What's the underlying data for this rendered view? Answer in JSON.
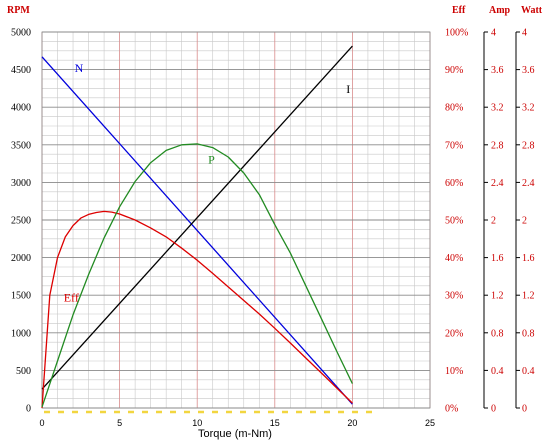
{
  "chart_data": {
    "type": "line",
    "title": "",
    "xlabel": "Torque (m-Nm)",
    "xlim": [
      0,
      25
    ],
    "x_ticks": [
      "0",
      "5",
      "10",
      "15",
      "20",
      "25"
    ],
    "grid": true,
    "y_axes": {
      "rpm": {
        "title": "RPM",
        "range": [
          0,
          5000
        ],
        "ticks": [
          "0",
          "500",
          "1000",
          "1500",
          "2000",
          "2500",
          "3000",
          "3500",
          "4000",
          "4500",
          "5000"
        ],
        "color": "#cc0000"
      },
      "eff": {
        "title": "Eff",
        "range": [
          0,
          100
        ],
        "ticks": [
          "0%",
          "10%",
          "20%",
          "30%",
          "40%",
          "50%",
          "60%",
          "70%",
          "80%",
          "90%",
          "100%"
        ],
        "color": "#cc0000"
      },
      "amp": {
        "title": "Amp",
        "range": [
          0,
          4
        ],
        "ticks": [
          "0",
          "0.4",
          "0.8",
          "1.2",
          "1.6",
          "2",
          "2.4",
          "2.8",
          "3.2",
          "3.6",
          "4"
        ],
        "color": "#cc0000"
      },
      "watt": {
        "title": "Watt",
        "range": [
          0,
          4
        ],
        "ticks": [
          "0",
          "0.4",
          "0.8",
          "1.2",
          "1.6",
          "2",
          "2.4",
          "2.8",
          "3.2",
          "3.6",
          "4"
        ],
        "color": "#cc0000"
      }
    },
    "series": [
      {
        "name": "N",
        "axis": "rpm",
        "color": "#0000dd",
        "x": [
          0,
          20
        ],
        "y": [
          4670,
          50
        ]
      },
      {
        "name": "I",
        "axis": "amp",
        "color": "#000000",
        "x": [
          0,
          20
        ],
        "y": [
          0.2,
          3.85
        ]
      },
      {
        "name": "Eff",
        "axis": "eff",
        "color": "#dd0000",
        "x": [
          0,
          0.5,
          1,
          1.5,
          2,
          2.5,
          3,
          3.5,
          4,
          4.5,
          5,
          6,
          7,
          8,
          9,
          10,
          11,
          12,
          13,
          14,
          15,
          16,
          17,
          18,
          19,
          20
        ],
        "y": [
          0,
          30,
          40,
          45.5,
          48.5,
          50.5,
          51.5,
          52,
          52.3,
          52.1,
          51.6,
          50,
          47.9,
          45.5,
          42.5,
          39.3,
          35.8,
          32.2,
          28.6,
          25,
          21.2,
          17.3,
          13.3,
          9.3,
          5.3,
          1.3
        ]
      },
      {
        "name": "P",
        "axis": "watt",
        "color": "#228b22",
        "x": [
          0,
          1,
          2,
          3,
          4,
          5,
          6,
          7,
          8,
          9,
          10,
          11,
          12,
          13,
          14,
          15,
          16,
          17,
          18,
          19,
          20
        ],
        "y": [
          0.01,
          0.5,
          0.99,
          1.42,
          1.81,
          2.14,
          2.41,
          2.61,
          2.74,
          2.8,
          2.81,
          2.77,
          2.67,
          2.5,
          2.27,
          1.95,
          1.65,
          1.3,
          0.95,
          0.6,
          0.26
        ]
      }
    ],
    "curve_labels": [
      {
        "text": "N",
        "series": "N",
        "x": 2.1,
        "y": 4470
      },
      {
        "text": "I",
        "series": "I",
        "x": 19.6,
        "y": 3.35
      },
      {
        "text": "Eff",
        "series": "Eff",
        "x": 1.4,
        "y": 28.3
      },
      {
        "text": "P",
        "series": "P",
        "x": 10.7,
        "y": 2.6
      }
    ]
  }
}
